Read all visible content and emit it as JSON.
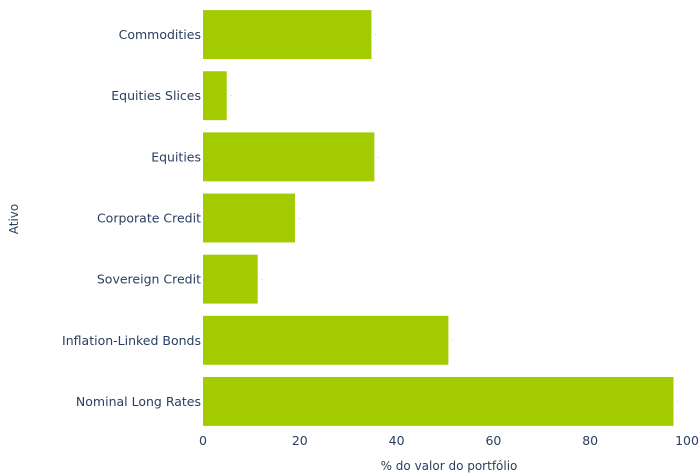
{
  "chart_data": {
    "type": "bar",
    "orientation": "horizontal",
    "categories": [
      "Commodities",
      "Equities Slices",
      "Equities",
      "Corporate Credit",
      "Sovereign Credit",
      "Inflation-Linked Bonds",
      "Nominal Long Rates"
    ],
    "values": [
      34.8,
      4.9,
      35.4,
      19.0,
      11.3,
      50.7,
      97.2
    ],
    "xlabel": "% do valor do portfólio",
    "ylabel": "Ativo",
    "xlim": [
      0,
      100
    ],
    "xticks": [
      0,
      20,
      40,
      60,
      80,
      100
    ],
    "grid": false,
    "bar_color": "#a2cc00"
  }
}
